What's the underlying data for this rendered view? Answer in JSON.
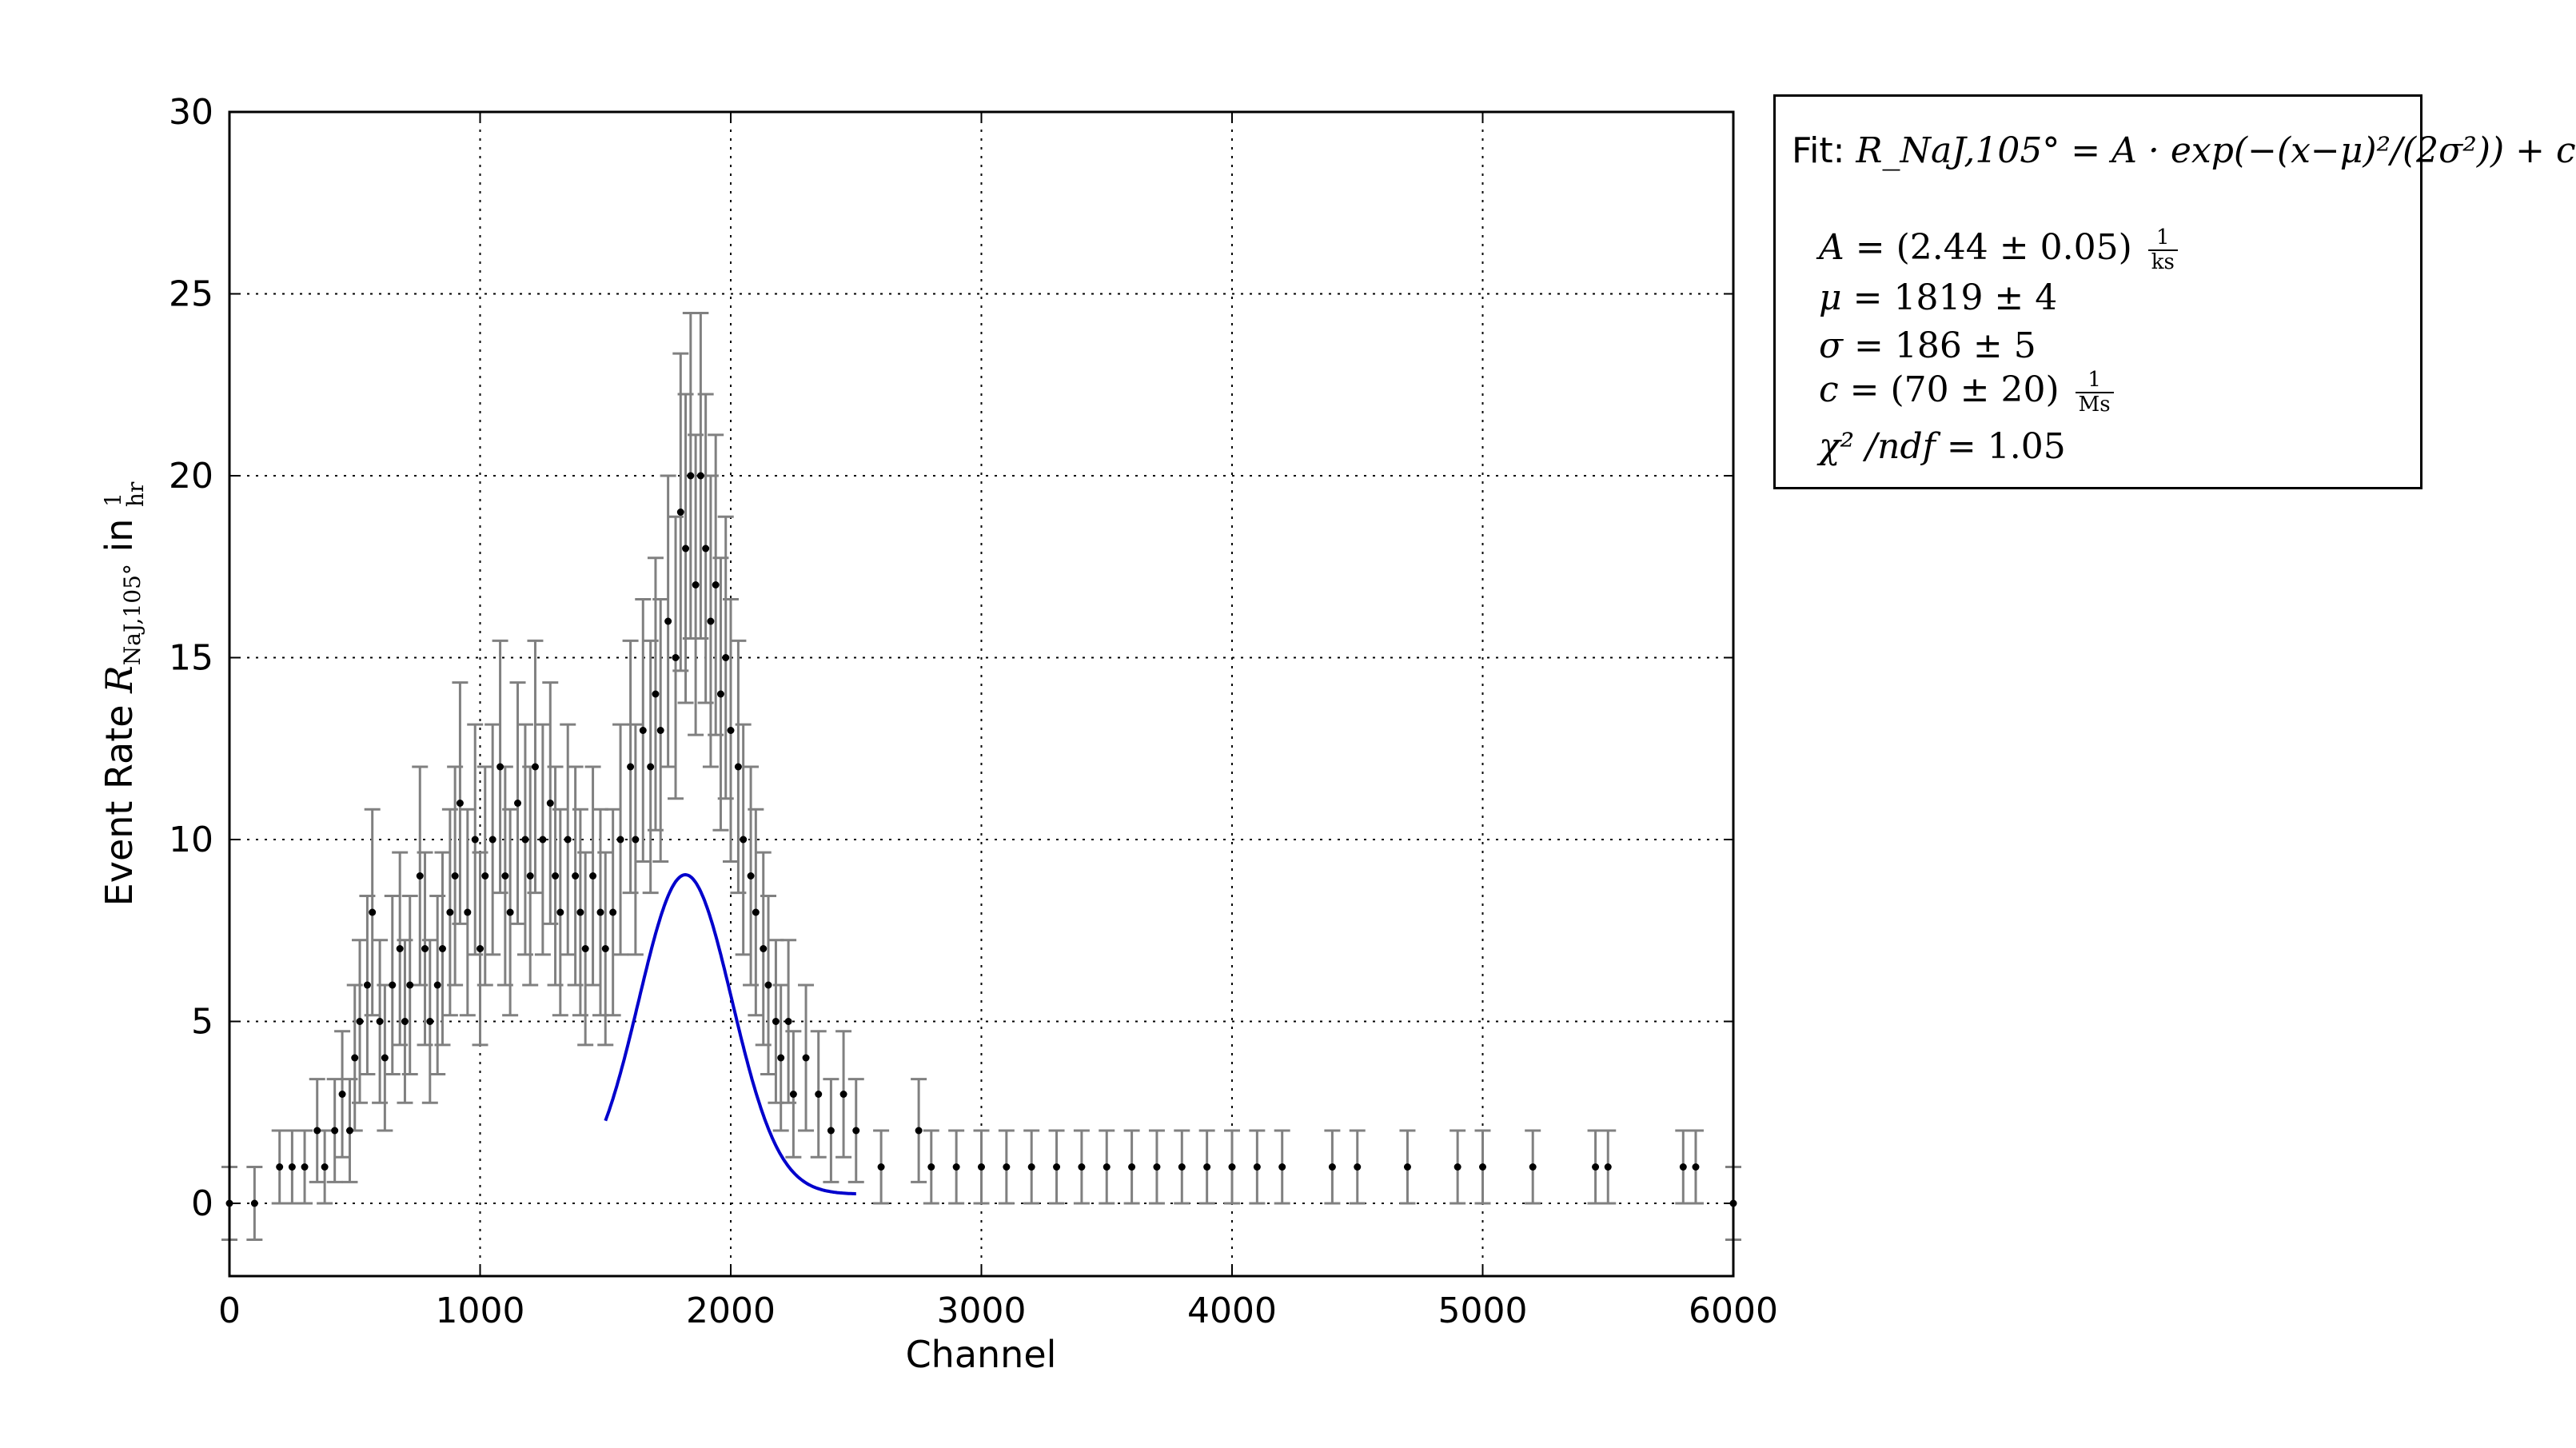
{
  "colors": {
    "points": "#000000",
    "errorbars": "#808080",
    "fit_curve": "#0000cc",
    "grid": "#000000"
  },
  "chart_data": {
    "type": "scatter",
    "title": "",
    "xlabel": "Channel",
    "ylabel": "Event Rate R_NaJ,105° in 1/hr",
    "ylabel_prefix": "Event Rate ",
    "ylabel_var": "R",
    "ylabel_sub": "NaJ,105°",
    "ylabel_in": " in ",
    "ylabel_unit_num": "1",
    "ylabel_unit_den": "hr",
    "xlim": [
      0,
      6000
    ],
    "ylim": [
      -2,
      30
    ],
    "xticks": [
      "0",
      "1000",
      "2000",
      "3000",
      "4000",
      "5000",
      "6000"
    ],
    "yticks": [
      "0",
      "5",
      "10",
      "15",
      "20",
      "25",
      "30"
    ],
    "grid": true,
    "legend_placement": "outside-right",
    "series": [
      {
        "kind": "data-points-with-errorbars",
        "description_levels": [
          0,
          1,
          2,
          3,
          4,
          5,
          6,
          7,
          8,
          9,
          10,
          11,
          12,
          13,
          14,
          15,
          16,
          17,
          18,
          19,
          20
        ],
        "points": [
          [
            0,
            0
          ],
          [
            100,
            0
          ],
          [
            200,
            1
          ],
          [
            250,
            1
          ],
          [
            300,
            1
          ],
          [
            350,
            2
          ],
          [
            380,
            1
          ],
          [
            420,
            2
          ],
          [
            450,
            3
          ],
          [
            480,
            2
          ],
          [
            500,
            4
          ],
          [
            520,
            5
          ],
          [
            550,
            6
          ],
          [
            570,
            8
          ],
          [
            600,
            5
          ],
          [
            620,
            4
          ],
          [
            650,
            6
          ],
          [
            680,
            7
          ],
          [
            700,
            5
          ],
          [
            720,
            6
          ],
          [
            760,
            9
          ],
          [
            780,
            7
          ],
          [
            800,
            5
          ],
          [
            830,
            6
          ],
          [
            850,
            7
          ],
          [
            880,
            8
          ],
          [
            900,
            9
          ],
          [
            920,
            11
          ],
          [
            950,
            8
          ],
          [
            980,
            10
          ],
          [
            1000,
            7
          ],
          [
            1020,
            9
          ],
          [
            1050,
            10
          ],
          [
            1080,
            12
          ],
          [
            1100,
            9
          ],
          [
            1120,
            8
          ],
          [
            1150,
            11
          ],
          [
            1180,
            10
          ],
          [
            1200,
            9
          ],
          [
            1220,
            12
          ],
          [
            1250,
            10
          ],
          [
            1280,
            11
          ],
          [
            1300,
            9
          ],
          [
            1320,
            8
          ],
          [
            1350,
            10
          ],
          [
            1380,
            9
          ],
          [
            1400,
            8
          ],
          [
            1420,
            7
          ],
          [
            1450,
            9
          ],
          [
            1480,
            8
          ],
          [
            1500,
            7
          ],
          [
            1530,
            8
          ],
          [
            1560,
            10
          ],
          [
            1600,
            12
          ],
          [
            1620,
            10
          ],
          [
            1650,
            13
          ],
          [
            1680,
            12
          ],
          [
            1700,
            14
          ],
          [
            1720,
            13
          ],
          [
            1750,
            16
          ],
          [
            1780,
            15
          ],
          [
            1800,
            19
          ],
          [
            1820,
            18
          ],
          [
            1840,
            20
          ],
          [
            1860,
            17
          ],
          [
            1880,
            20
          ],
          [
            1900,
            18
          ],
          [
            1920,
            16
          ],
          [
            1940,
            17
          ],
          [
            1960,
            14
          ],
          [
            1980,
            15
          ],
          [
            2000,
            13
          ],
          [
            2030,
            12
          ],
          [
            2050,
            10
          ],
          [
            2080,
            9
          ],
          [
            2100,
            8
          ],
          [
            2130,
            7
          ],
          [
            2150,
            6
          ],
          [
            2180,
            5
          ],
          [
            2200,
            4
          ],
          [
            2230,
            5
          ],
          [
            2250,
            3
          ],
          [
            2300,
            4
          ],
          [
            2350,
            3
          ],
          [
            2400,
            2
          ],
          [
            2450,
            3
          ],
          [
            2500,
            2
          ],
          [
            2600,
            1
          ],
          [
            2750,
            2
          ],
          [
            2800,
            1
          ],
          [
            2900,
            1
          ],
          [
            3000,
            1
          ],
          [
            3100,
            1
          ],
          [
            3200,
            1
          ],
          [
            3300,
            1
          ],
          [
            3400,
            1
          ],
          [
            3500,
            1
          ],
          [
            3600,
            1
          ],
          [
            3700,
            1
          ],
          [
            3800,
            1
          ],
          [
            3900,
            1
          ],
          [
            4000,
            1
          ],
          [
            4100,
            1
          ],
          [
            4200,
            1
          ],
          [
            4400,
            1
          ],
          [
            4500,
            1
          ],
          [
            4700,
            1
          ],
          [
            4900,
            1
          ],
          [
            5000,
            1
          ],
          [
            5200,
            1
          ],
          [
            5450,
            1
          ],
          [
            5500,
            1
          ],
          [
            5800,
            1
          ],
          [
            5850,
            1
          ],
          [
            6000,
            0
          ]
        ]
      },
      {
        "kind": "fit-curve",
        "model": "gaussian",
        "A_per_hr": 8.78,
        "mu": 1819,
        "sigma": 186,
        "c_per_hr": 0.252,
        "x_range": [
          1500,
          2500
        ]
      }
    ]
  },
  "fit_box": {
    "title_prefix": "Fit:",
    "formula": "R_NaJ,105° = A · exp(−(x−μ)²/(2σ²)) + c",
    "params": [
      {
        "name": "A",
        "text": "= (2.44 ± 0.05)",
        "unit_num": "1",
        "unit_den": "ks"
      },
      {
        "name": "μ",
        "text": "= 1819 ± 4",
        "unit_num": "",
        "unit_den": ""
      },
      {
        "name": "σ",
        "text": "= 186 ± 5",
        "unit_num": "",
        "unit_den": ""
      },
      {
        "name": "c",
        "text": "= (70 ± 20)",
        "unit_num": "1",
        "unit_den": "Ms"
      },
      {
        "name": "χ² /ndf",
        "text": "= 1.05",
        "unit_num": "",
        "unit_den": ""
      }
    ]
  }
}
